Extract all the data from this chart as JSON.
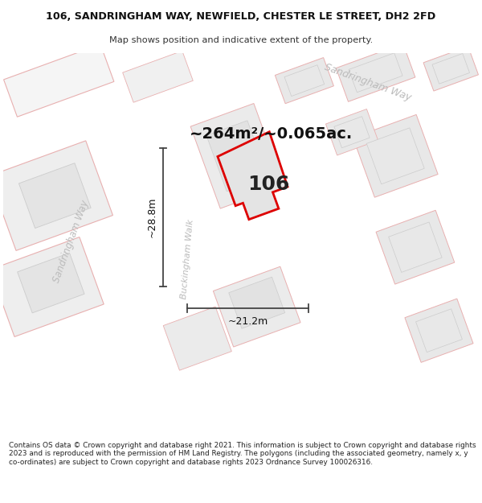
{
  "title_line1": "106, SANDRINGHAM WAY, NEWFIELD, CHESTER LE STREET, DH2 2FD",
  "title_line2": "Map shows position and indicative extent of the property.",
  "area_text": "~264m²/~0.065ac.",
  "label_106": "106",
  "dim_width": "~21.2m",
  "dim_height": "~28.8m",
  "street_label_top": "Sandringham Way",
  "street_label_left": "Sandringham Way",
  "street_label_mid": "Buckingham Walk",
  "footer_text": "Contains OS data © Crown copyright and database right 2021. This information is subject to Crown copyright and database rights 2023 and is reproduced with the permission of HM Land Registry. The polygons (including the associated geometry, namely x, y co-ordinates) are subject to Crown copyright and database rights 2023 Ordnance Survey 100026316.",
  "bg_color": "#ffffff",
  "map_bg": "#f0f0f0",
  "road_color": "#ffffff",
  "block_fill": "#e8e8e8",
  "block_edge_pink": "#e8b0b0",
  "block_edge_gray": "#cccccc",
  "prop_fill": "#e4e4e4",
  "prop_edge": "#dd0000",
  "dim_color": "#444444",
  "street_color": "#bbbbbb",
  "text_dark": "#111111"
}
